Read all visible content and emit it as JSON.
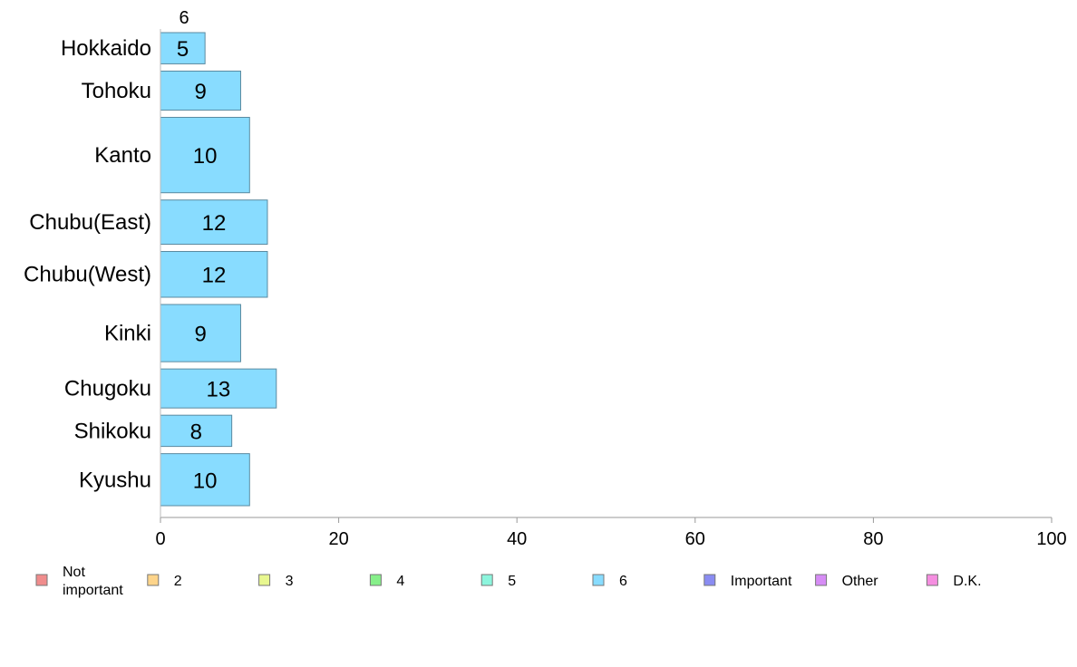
{
  "chart_data": {
    "type": "bar",
    "orientation": "horizontal",
    "stacked": true,
    "title": "",
    "xlabel": "",
    "ylabel": "",
    "xlim": [
      0,
      100
    ],
    "x_ticks": [
      "0",
      "20",
      "40",
      "60",
      "80",
      "100"
    ],
    "top_annotation": "6",
    "categories": [
      "Hokkaido",
      "Tohoku",
      "Kanto",
      "Chubu(East)",
      "Chubu(West)",
      "Kinki",
      "Chugoku",
      "Shikoku",
      "Kyushu"
    ],
    "category_weights": [
      0.6,
      0.75,
      1.45,
      0.85,
      0.88,
      1.1,
      0.75,
      0.6,
      1.0
    ],
    "series": [
      {
        "name": "6",
        "color": "#88dcff",
        "values": [
          5,
          9,
          10,
          12,
          12,
          9,
          13,
          8,
          10
        ]
      }
    ],
    "legend": {
      "placement": "bottom",
      "entries": [
        {
          "label": "Not important",
          "color": "#f08c8c"
        },
        {
          "label": "2",
          "color": "#fdd48a"
        },
        {
          "label": "3",
          "color": "#e8f78f"
        },
        {
          "label": "4",
          "color": "#86ef89"
        },
        {
          "label": "5",
          "color": "#8cf5dd"
        },
        {
          "label": "6",
          "color": "#88dcff"
        },
        {
          "label": "Important",
          "color": "#8a8cf2"
        },
        {
          "label": "Other",
          "color": "#d68cf5"
        },
        {
          "label": "D.K.",
          "color": "#f58ee0"
        }
      ]
    },
    "grid": false
  }
}
